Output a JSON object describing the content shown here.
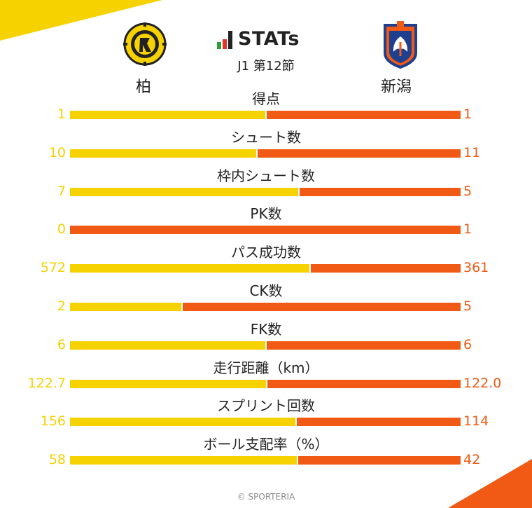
{
  "header": {
    "logo_text": "STATs",
    "subtitle": "J1 第12節",
    "home_team": "柏",
    "away_team": "新潟",
    "home_crest_icon": "kashiwa-reysol-crest-icon",
    "away_crest_icon": "albirex-niigata-crest-icon"
  },
  "colors": {
    "home": "#f5d200",
    "away": "#f05a14",
    "logo_bars": [
      "#2e9e3a",
      "#e8312a",
      "#222222"
    ]
  },
  "footer": {
    "credit": "© SPORTERIA"
  },
  "chart_data": {
    "type": "bar",
    "orientation": "horizontal-stacked-share",
    "title": "STATs",
    "series": [
      {
        "name": "柏",
        "values": [
          1,
          10,
          7,
          0,
          572,
          2,
          6,
          122.7,
          156,
          58
        ]
      },
      {
        "name": "新潟",
        "values": [
          1,
          11,
          5,
          1,
          361,
          5,
          6,
          122.0,
          114,
          42
        ]
      }
    ],
    "stats": [
      {
        "label": "得点",
        "home": "1",
        "away": "1"
      },
      {
        "label": "シュート数",
        "home": "10",
        "away": "11"
      },
      {
        "label": "枠内シュート数",
        "home": "7",
        "away": "5"
      },
      {
        "label": "PK数",
        "home": "0",
        "away": "1"
      },
      {
        "label": "パス成功数",
        "home": "572",
        "away": "361"
      },
      {
        "label": "CK数",
        "home": "2",
        "away": "5"
      },
      {
        "label": "FK数",
        "home": "6",
        "away": "6"
      },
      {
        "label": "走行距離（km）",
        "home": "122.7",
        "away": "122.0"
      },
      {
        "label": "スプリント回数",
        "home": "156",
        "away": "114"
      },
      {
        "label": "ボール支配率（%）",
        "home": "58",
        "away": "42"
      }
    ]
  }
}
